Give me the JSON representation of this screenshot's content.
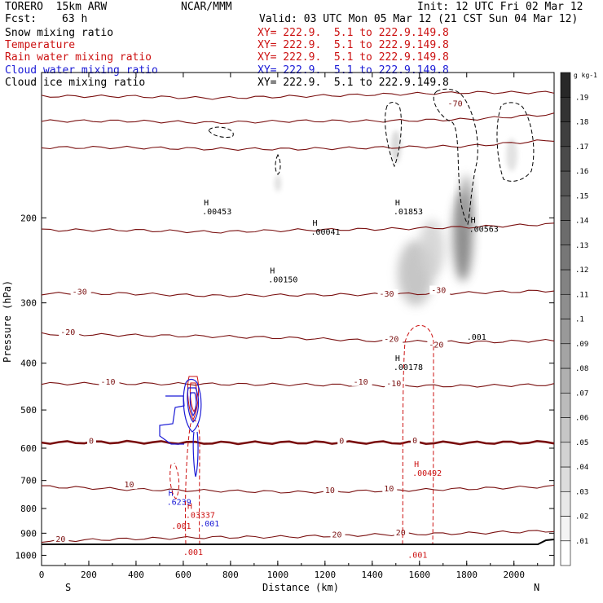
{
  "header": {
    "model": "TORERO  15km ARW",
    "center": "NCAR/MMM",
    "init": "Init: 12 UTC Fri 02 Mar 12",
    "fcst_label": "Fcst:",
    "fcst_value": "63 h",
    "valid": "Valid: 03 UTC Mon 05 Mar 12 (21 CST Sun 04 Mar 12)"
  },
  "fields": [
    {
      "name": "Snow mixing ratio",
      "xy": "XY= 222.9.  5.1 to 222.9.149.8",
      "color": "#000000"
    },
    {
      "name": "Temperature",
      "xy": "XY= 222.9.  5.1 to 222.9.149.8",
      "color": "#cc1111"
    },
    {
      "name": "Rain water mixing ratio",
      "xy": "XY= 222.9.  5.1 to 222.9.149.8",
      "color": "#cc1111"
    },
    {
      "name": "Cloud water mixing ratio",
      "xy": "XY= 222.9.  5.1 to 222.9.149.8",
      "color": "#1a1ad6"
    },
    {
      "name": "Cloud ice mixing ratio",
      "xy": "XY= 222.9.  5.1 to 222.9.149.8",
      "color": "#000000"
    }
  ],
  "chart_data": {
    "type": "contour cross-section",
    "title": "",
    "xlabel": "Distance (km)",
    "ylabel": "Pressure (hPa)",
    "xlim": [
      0,
      2170
    ],
    "ylim": [
      1050,
      100
    ],
    "x_ticks": [
      0,
      200,
      400,
      600,
      800,
      1000,
      1200,
      1400,
      1600,
      1800,
      2000
    ],
    "y_ticks": [
      200,
      300,
      400,
      500,
      600,
      700,
      800,
      900,
      1000
    ],
    "y_scale": "log",
    "x_left_label": "S",
    "x_right_label": "N",
    "colorbar": {
      "unit": "g kg-1",
      "ticks": [
        ".01",
        ".02",
        ".03",
        ".04",
        ".05",
        ".06",
        ".07",
        ".08",
        ".09",
        ".1",
        ".11",
        ".12",
        ".13",
        ".14",
        ".15",
        ".16",
        ".17",
        ".18",
        ".19"
      ]
    },
    "temperature_labels": [
      {
        "text": "-70",
        "x": 1720,
        "p": 117
      },
      {
        "text": "-30",
        "x": 130,
        "p": 287
      },
      {
        "text": "-30",
        "x": 1430,
        "p": 290
      },
      {
        "text": "-30",
        "x": 1650,
        "p": 285
      },
      {
        "text": "-20",
        "x": 80,
        "p": 348
      },
      {
        "text": "-20",
        "x": 1450,
        "p": 360
      },
      {
        "text": "-20",
        "x": 1640,
        "p": 370
      },
      {
        "text": "-10",
        "x": 250,
        "p": 441
      },
      {
        "text": "-10",
        "x": 1320,
        "p": 441
      },
      {
        "text": "-10",
        "x": 1460,
        "p": 445
      },
      {
        "text": "0",
        "x": 200,
        "p": 585
      },
      {
        "text": "0",
        "x": 1260,
        "p": 585
      },
      {
        "text": "0",
        "x": 1570,
        "p": 584
      },
      {
        "text": "10",
        "x": 350,
        "p": 720
      },
      {
        "text": "10",
        "x": 1200,
        "p": 740
      },
      {
        "text": "10",
        "x": 1450,
        "p": 735
      },
      {
        "text": "20",
        "x": 60,
        "p": 935
      },
      {
        "text": "20",
        "x": 1230,
        "p": 915
      },
      {
        "text": "20",
        "x": 1500,
        "p": 905
      }
    ],
    "temperature_isotherms": [
      {
        "value": -70,
        "p": [
          112,
          112,
          113,
          112,
          111,
          110,
          110
        ]
      },
      {
        "value": -60,
        "p": [
          126,
          126,
          127,
          126,
          126,
          125,
          122
        ]
      },
      {
        "value": -50,
        "p": [
          143,
          143,
          144,
          144,
          143,
          142,
          138
        ]
      },
      {
        "value": -40,
        "p": [
          212,
          212,
          214,
          212,
          211,
          209,
          206
        ]
      },
      {
        "value": -30,
        "p": [
          287,
          287,
          290,
          289,
          288,
          286,
          283
        ]
      },
      {
        "value": -20,
        "p": [
          348,
          350,
          352,
          355,
          360,
          362,
          359
        ]
      },
      {
        "value": -10,
        "p": [
          441,
          441,
          442,
          443,
          445,
          446,
          443
        ]
      },
      {
        "value": 0,
        "p": [
          584,
          583,
          585,
          584,
          584,
          585,
          583
        ]
      },
      {
        "value": 10,
        "p": [
          720,
          730,
          735,
          740,
          735,
          728,
          720
        ]
      },
      {
        "value": 20,
        "p": [
          935,
          925,
          918,
          915,
          906,
          900,
          890
        ]
      }
    ],
    "max_labels": [
      {
        "field": "Cloud ice mixing ratio",
        "text": ".00453",
        "x": 680,
        "p": 195
      },
      {
        "field": "Cloud ice mixing ratio",
        "text": ".00041",
        "x": 1140,
        "p": 215
      },
      {
        "field": "Cloud ice mixing ratio",
        "text": ".00150",
        "x": 960,
        "p": 270
      },
      {
        "field": "Cloud ice mixing ratio",
        "text": ".01853",
        "x": 1490,
        "p": 195
      },
      {
        "field": "Cloud ice mixing ratio",
        "text": ".00563",
        "x": 1810,
        "p": 212
      },
      {
        "field": "Snow mixing ratio",
        "text": ".001",
        "x": 1800,
        "p": 355
      },
      {
        "field": "Snow mixing ratio",
        "text": ".00178",
        "x": 1490,
        "p": 410
      },
      {
        "field": "Rain water mixing ratio",
        "text": ".00492",
        "x": 1570,
        "p": 680
      },
      {
        "field": "Rain water mixing ratio",
        "text": ".03337",
        "x": 610,
        "p": 830
      },
      {
        "field": "Rain water mixing ratio",
        "text": ".001",
        "x": 550,
        "p": 875
      },
      {
        "field": "Rain water mixing ratio",
        "text": ".001",
        "x": 600,
        "p": 990
      },
      {
        "field": "Rain water mixing ratio",
        "text": ".001",
        "x": 1550,
        "p": 1005
      },
      {
        "field": "Cloud water mixing ratio",
        "text": ".6239",
        "x": 530,
        "p": 780
      },
      {
        "field": "Cloud water mixing ratio",
        "text": ".001",
        "x": 670,
        "p": 865
      }
    ]
  }
}
